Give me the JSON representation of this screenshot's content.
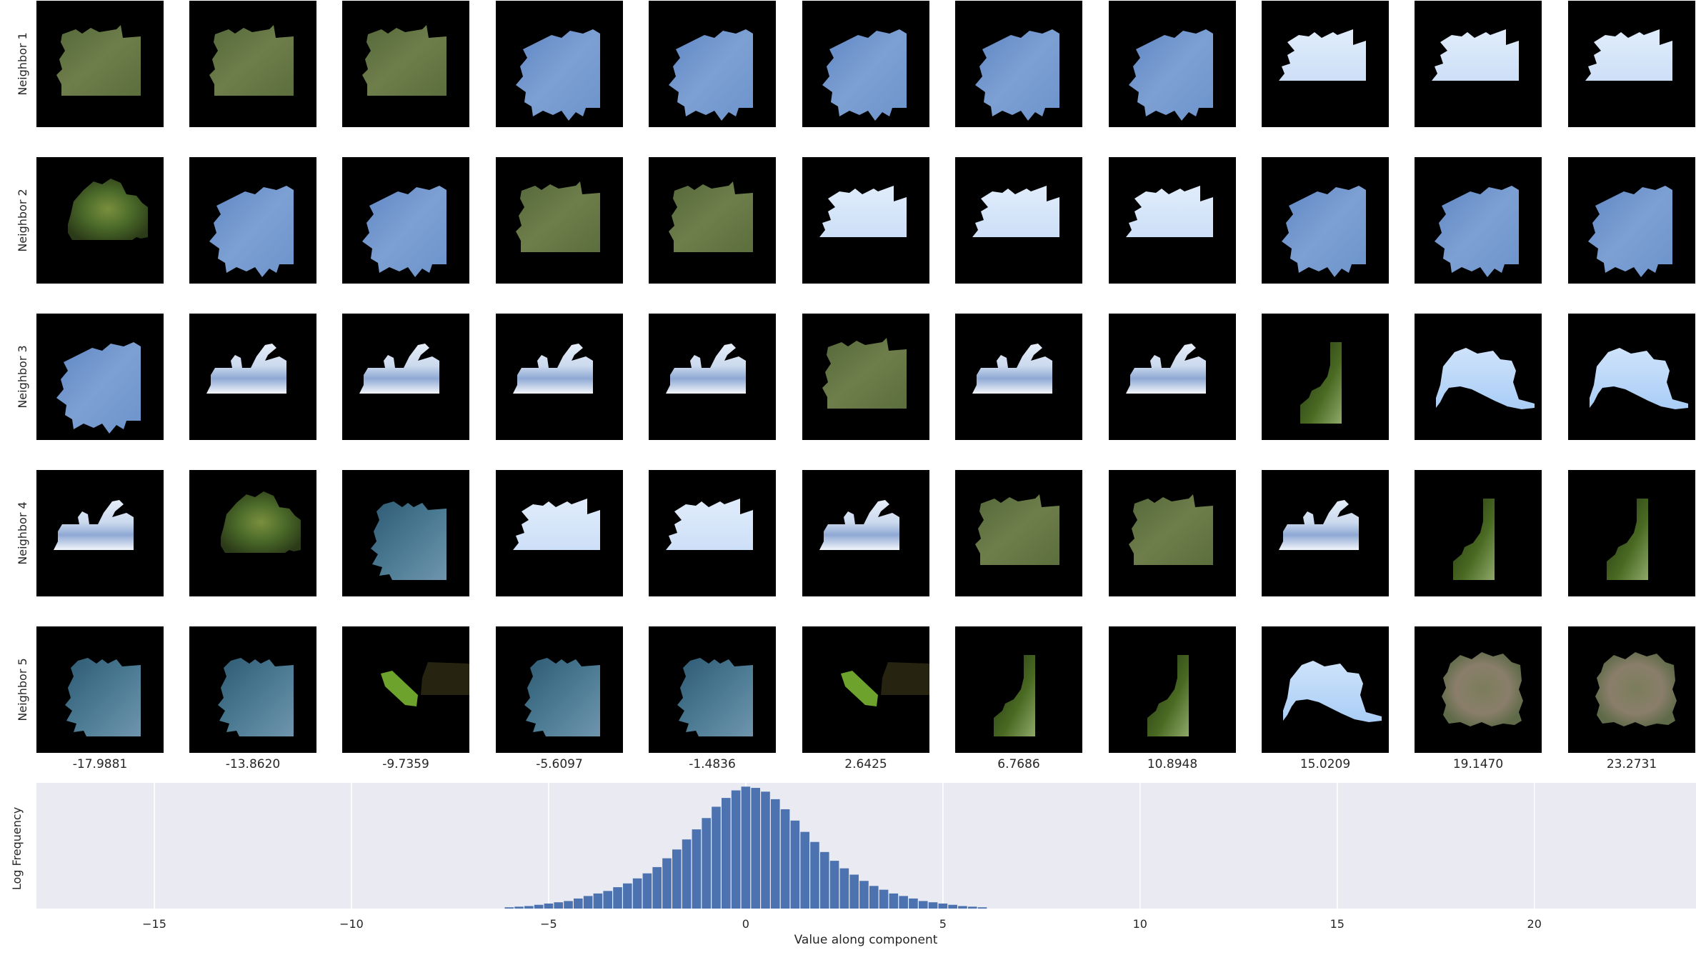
{
  "grid": {
    "row_labels": [
      "Neighbor 1",
      "Neighbor 2",
      "Neighbor 3",
      "Neighbor 4",
      "Neighbor 5"
    ],
    "column_values": [
      "-17.9881",
      "-13.8620",
      "-9.7359",
      "-5.6097",
      "-1.4836",
      "2.6425",
      "6.7686",
      "10.8948",
      "15.0209",
      "19.1470",
      "23.2731"
    ],
    "cells": [
      [
        "grass",
        "grass",
        "grass",
        "sky-blue",
        "sky-blue",
        "sky-blue",
        "sky-blue",
        "sky-blue",
        "white-sky",
        "white-sky",
        "white-sky"
      ],
      [
        "foliage",
        "sky-blue",
        "sky-blue",
        "grass",
        "grass",
        "white-sky",
        "white-sky",
        "white-sky",
        "sky-blue",
        "sky-blue",
        "sky-blue"
      ],
      [
        "sky-blue",
        "clouds",
        "clouds",
        "clouds",
        "clouds",
        "grass",
        "clouds",
        "clouds",
        "leaf-edge",
        "horizon",
        "horizon"
      ],
      [
        "clouds",
        "foliage",
        "dusk-sky",
        "white-sky",
        "white-sky",
        "clouds",
        "grass",
        "grass",
        "clouds",
        "leaf-edge",
        "leaf-edge"
      ],
      [
        "dusk-sky",
        "dusk-sky",
        "green-stick",
        "dusk-sky",
        "dusk-sky",
        "green-stick",
        "leaf-edge",
        "leaf-edge",
        "horizon",
        "rocky",
        "rocky"
      ]
    ]
  },
  "chart_data": {
    "type": "bar",
    "xlabel": "Value along component",
    "ylabel": "Log Frequency",
    "xlim": [
      -17.99,
      24.1
    ],
    "xticks": [
      -15,
      -10,
      -5,
      0,
      5,
      10,
      15,
      20
    ],
    "xtick_labels": [
      "−15",
      "−10",
      "−5",
      "0",
      "5",
      "10",
      "15",
      "20"
    ],
    "grid": true,
    "bin_width": 0.25,
    "y_scale": "relative (0–1)",
    "x": [
      -6.0,
      -5.75,
      -5.5,
      -5.25,
      -5.0,
      -4.75,
      -4.5,
      -4.25,
      -4.0,
      -3.75,
      -3.5,
      -3.25,
      -3.0,
      -2.75,
      -2.5,
      -2.25,
      -2.0,
      -1.75,
      -1.5,
      -1.25,
      -1.0,
      -0.75,
      -0.5,
      -0.25,
      0.0,
      0.25,
      0.5,
      0.75,
      1.0,
      1.25,
      1.5,
      1.75,
      2.0,
      2.25,
      2.5,
      2.75,
      3.0,
      3.25,
      3.5,
      3.75,
      4.0,
      4.25,
      4.5,
      4.75,
      5.0,
      5.25,
      5.5,
      5.75,
      6.0
    ],
    "values": [
      0.01,
      0.015,
      0.02,
      0.03,
      0.04,
      0.05,
      0.06,
      0.08,
      0.1,
      0.12,
      0.14,
      0.17,
      0.2,
      0.24,
      0.28,
      0.33,
      0.4,
      0.47,
      0.55,
      0.63,
      0.72,
      0.81,
      0.88,
      0.94,
      0.97,
      0.96,
      0.93,
      0.87,
      0.79,
      0.7,
      0.61,
      0.53,
      0.45,
      0.38,
      0.32,
      0.27,
      0.22,
      0.18,
      0.15,
      0.12,
      0.1,
      0.08,
      0.06,
      0.05,
      0.04,
      0.03,
      0.02,
      0.015,
      0.01
    ]
  },
  "colors": {
    "plot_background": "#eaeaf2",
    "bar": "#4c72b0",
    "grid": "#ffffff",
    "text": "#262626",
    "tile_background": "#000000"
  }
}
